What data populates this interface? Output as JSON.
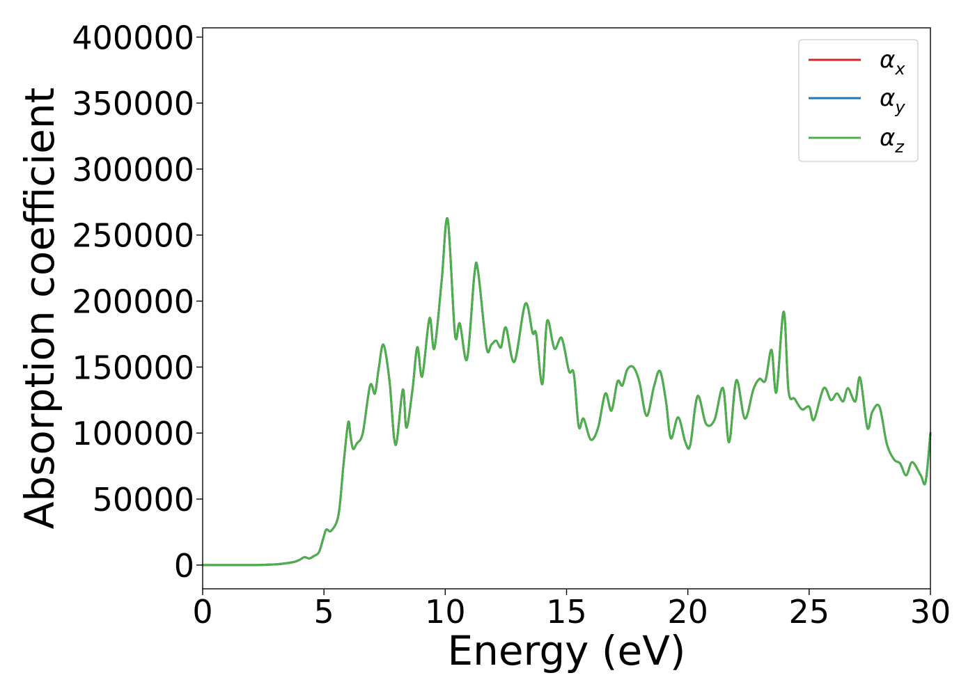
{
  "chart_data": {
    "type": "line",
    "xlabel": "Energy (eV)",
    "ylabel": "Absorption coefficient",
    "xlim": [
      0,
      30
    ],
    "ylim": [
      -18000,
      407000
    ],
    "xticks": [
      0,
      5,
      10,
      15,
      20,
      25,
      30
    ],
    "yticks": [
      0,
      50000,
      100000,
      150000,
      200000,
      250000,
      300000,
      350000,
      400000
    ],
    "grid": false,
    "legend_position": "top-right",
    "series": [
      {
        "name": "α",
        "subscript": "x",
        "color": "#d62728"
      },
      {
        "name": "α",
        "subscript": "y",
        "color": "#1f77b4"
      },
      {
        "name": "α",
        "subscript": "z",
        "color": "#4daf4a"
      }
    ],
    "x": [
      0,
      1,
      2,
      3,
      3.5,
      3.8,
      4.0,
      4.2,
      4.4,
      4.6,
      4.8,
      5.0,
      5.1,
      5.3,
      5.6,
      5.8,
      6.0,
      6.1,
      6.2,
      6.35,
      6.6,
      6.9,
      7.1,
      7.25,
      7.45,
      7.7,
      7.95,
      8.25,
      8.4,
      8.65,
      8.85,
      9.05,
      9.35,
      9.55,
      9.85,
      10.1,
      10.4,
      10.6,
      10.9,
      11.2,
      11.35,
      11.7,
      11.9,
      12.1,
      12.3,
      12.5,
      12.85,
      13.3,
      13.6,
      13.75,
      14.0,
      14.2,
      14.5,
      14.8,
      15.1,
      15.3,
      15.5,
      15.7,
      16.0,
      16.3,
      16.6,
      16.85,
      17.1,
      17.3,
      17.5,
      17.75,
      18.0,
      18.3,
      18.6,
      18.85,
      19.1,
      19.3,
      19.6,
      19.9,
      20.1,
      20.4,
      20.75,
      21.1,
      21.45,
      21.7,
      22.0,
      22.35,
      22.7,
      22.95,
      23.2,
      23.45,
      23.65,
      23.95,
      24.15,
      24.4,
      24.7,
      25.0,
      25.2,
      25.6,
      25.9,
      26.15,
      26.4,
      26.6,
      26.9,
      27.1,
      27.4,
      27.6,
      27.9,
      28.2,
      28.5,
      28.75,
      29.0,
      29.25,
      29.6,
      29.8,
      30.0
    ],
    "y": [
      0,
      0,
      0,
      500,
      1500,
      2500,
      4000,
      6000,
      5000,
      7000,
      10000,
      22000,
      27000,
      26000,
      38000,
      75000,
      108000,
      97000,
      88000,
      92000,
      100000,
      136000,
      130000,
      148000,
      167000,
      140000,
      91000,
      133000,
      104000,
      133000,
      165000,
      143000,
      187000,
      164000,
      215000,
      262000,
      175000,
      183000,
      156000,
      220000,
      223000,
      165000,
      167000,
      170000,
      165000,
      180000,
      154000,
      198000,
      176000,
      175000,
      137000,
      185000,
      164000,
      172000,
      147000,
      145000,
      105000,
      111000,
      95000,
      104000,
      130000,
      117000,
      139000,
      136000,
      148000,
      150000,
      139000,
      113000,
      135000,
      147000,
      124000,
      96000,
      112000,
      93000,
      91000,
      128000,
      107000,
      110000,
      134000,
      93000,
      140000,
      111000,
      133000,
      141000,
      140000,
      163000,
      131000,
      192000,
      132000,
      126000,
      118000,
      120000,
      110000,
      134000,
      125000,
      130000,
      124000,
      134000,
      124000,
      142000,
      104000,
      116000,
      120000,
      92000,
      80000,
      77000,
      68000,
      78000,
      68000,
      63000,
      100000
    ]
  }
}
